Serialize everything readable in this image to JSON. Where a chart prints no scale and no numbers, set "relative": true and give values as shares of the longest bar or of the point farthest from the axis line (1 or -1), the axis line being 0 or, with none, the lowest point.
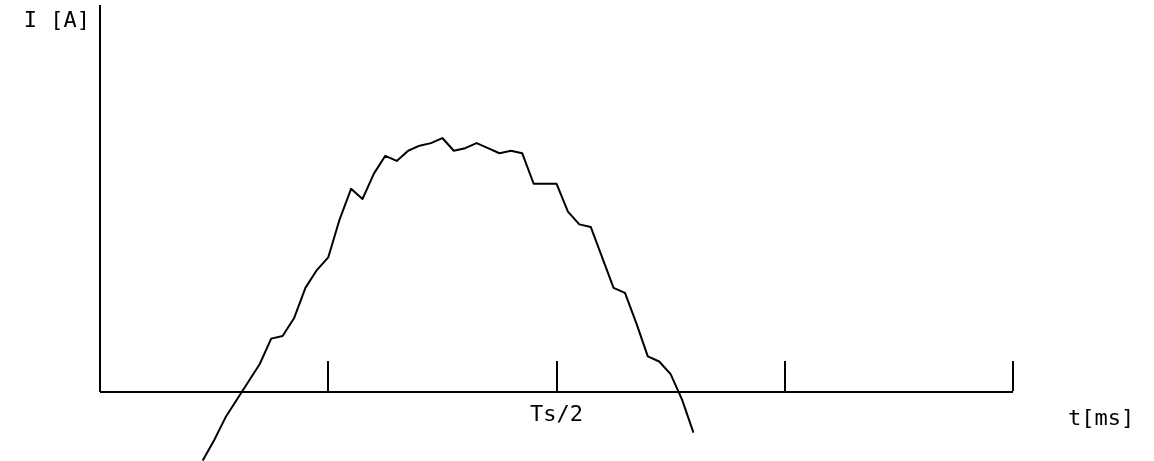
{
  "chart_data": {
    "type": "line",
    "relative": true,
    "xlabel": "t[ms]",
    "ylabel": "I [A]",
    "marker": "none",
    "line_style": "solid",
    "annotations": [
      "Ts/2"
    ],
    "categories": [
      null,
      null,
      null,
      null,
      null,
      null,
      null,
      null,
      null,
      null,
      null,
      null,
      null,
      null,
      null,
      null,
      null,
      null,
      null,
      null,
      null,
      null,
      null,
      null,
      null,
      null,
      null,
      null,
      null,
      null,
      null,
      null,
      null,
      null,
      null,
      null,
      null,
      null,
      null,
      null,
      null,
      null,
      null,
      null,
      null,
      null,
      null,
      null,
      null,
      null,
      null,
      null,
      null,
      null,
      null,
      null,
      null,
      null,
      null,
      null,
      null,
      null,
      null,
      null,
      null,
      null,
      null,
      null,
      null,
      null,
      null,
      null,
      null,
      null,
      null,
      null,
      null,
      null,
      null,
      null,
      null
    ],
    "series": [
      {
        "color": "#000000",
        "values": [
          null,
          null,
          null,
          null,
          null,
          null,
          null,
          null,
          null,
          -0.27,
          -0.19,
          -0.1,
          -0.03,
          0.04,
          0.11,
          0.21,
          0.22,
          0.29,
          0.41,
          0.48,
          0.53,
          0.68,
          0.8,
          0.76,
          0.86,
          0.93,
          0.91,
          0.95,
          0.97,
          0.98,
          1,
          0.95,
          0.96,
          0.98,
          0.96,
          0.94,
          0.95,
          0.94,
          0.82,
          0.82,
          0.82,
          0.71,
          0.66,
          0.65,
          0.53,
          0.41,
          0.39,
          0.27,
          0.14,
          0.12,
          0.07,
          -0.03,
          -0.16,
          null,
          null,
          null,
          null,
          null,
          null,
          null,
          null,
          null,
          null,
          null,
          null,
          null,
          null,
          null,
          null,
          null,
          null,
          null,
          null,
          null,
          null,
          null,
          null,
          null,
          null,
          null,
          null
        ]
      }
    ]
  }
}
